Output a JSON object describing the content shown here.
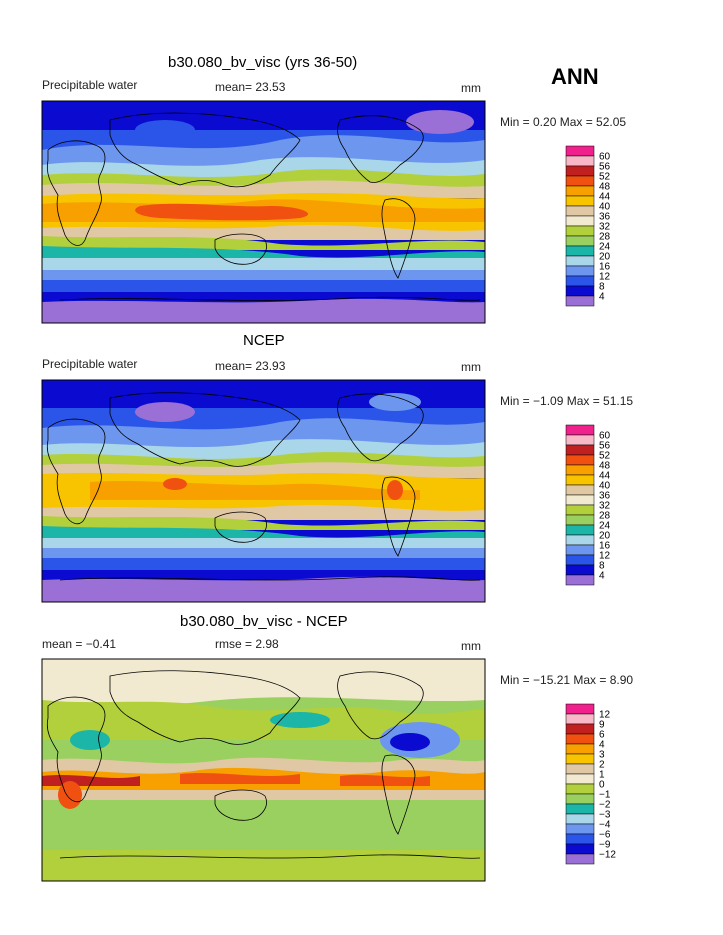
{
  "season": "ANN",
  "colors": {
    "abs_scale": [
      "#9a6fd6",
      "#0a0ad0",
      "#2a55e8",
      "#6d96ee",
      "#a9d6e8",
      "#1bb6a8",
      "#9ad060",
      "#b2cf3c",
      "#f2ead0",
      "#e0c8a4",
      "#f8c400",
      "#f8a000",
      "#f05010",
      "#c02020",
      "#f8b8c8",
      "#f0208c"
    ],
    "diff_scale": [
      "#9a6fd6",
      "#0a0ad0",
      "#2a55e8",
      "#6d96ee",
      "#a9d6e8",
      "#1bb6a8",
      "#9ad060",
      "#b2cf3c",
      "#f2ead0",
      "#e0c8a4",
      "#f8c400",
      "#f8a000",
      "#f05010",
      "#c02020",
      "#f8b8c8",
      "#f0208c"
    ]
  },
  "panels": [
    {
      "title": "b30.080_bv_visc (yrs 36-50)",
      "field": "Precipitable water",
      "stat1": "mean=  23.53",
      "stat2": "",
      "units": "mm",
      "minmax": "Min =    0.20  Max =   52.05"
    },
    {
      "title": "NCEP",
      "field": "Precipitable water",
      "stat1": "mean=  23.93",
      "stat2": "",
      "units": "mm",
      "minmax": "Min =   −1.09  Max =   51.15"
    },
    {
      "title": "b30.080_bv_visc - NCEP",
      "field": "",
      "stat1": "mean =   −0.41",
      "stat2": "rmse =    2.98",
      "units": "mm",
      "minmax": "Min = −15.21  Max =    8.90"
    }
  ],
  "chart_data": [
    {
      "type": "heatmap",
      "title": "b30.080_bv_visc (yrs 36-50)",
      "variable": "Precipitable water",
      "units": "mm",
      "mean": 23.53,
      "min": 0.2,
      "max": 52.05,
      "legend_levels": [
        "60",
        "56",
        "52",
        "48",
        "44",
        "40",
        "36",
        "32",
        "28",
        "24",
        "20",
        "16",
        "12",
        "8",
        "4"
      ],
      "legend_position": "right"
    },
    {
      "type": "heatmap",
      "title": "NCEP",
      "variable": "Precipitable water",
      "units": "mm",
      "mean": 23.93,
      "min": -1.09,
      "max": 51.15,
      "legend_levels": [
        "60",
        "56",
        "52",
        "48",
        "44",
        "40",
        "36",
        "32",
        "28",
        "24",
        "20",
        "16",
        "12",
        "8",
        "4"
      ],
      "legend_position": "right"
    },
    {
      "type": "heatmap",
      "title": "b30.080_bv_visc - NCEP",
      "units": "mm",
      "mean": -0.41,
      "rmse": 2.98,
      "min": -15.21,
      "max": 8.9,
      "legend_levels": [
        "12",
        "9",
        "6",
        "4",
        "3",
        "2",
        "1",
        "0",
        "−1",
        "−2",
        "−3",
        "−4",
        "−6",
        "−9",
        "−12"
      ],
      "legend_position": "right"
    }
  ]
}
